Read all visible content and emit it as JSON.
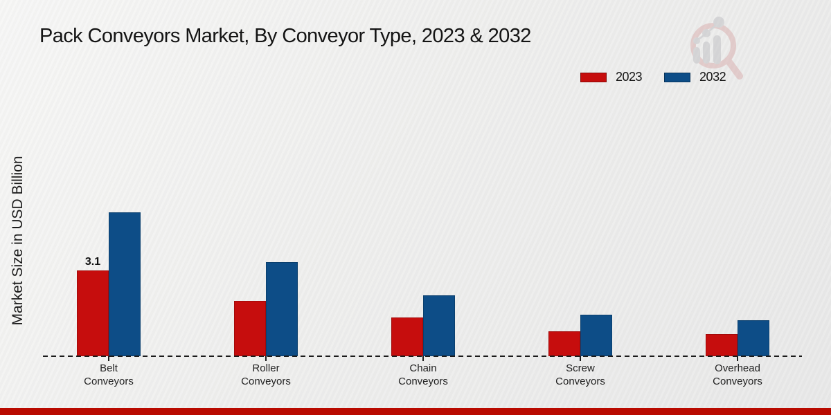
{
  "title": "Pack Conveyors Market, By Conveyor Type, 2023 & 2032",
  "footer_bar_color": "#b90a00",
  "watermark_icon": "magnifier-bar-chart-logo",
  "chart_data": {
    "type": "bar",
    "title": "Pack Conveyors Market, By Conveyor Type, 2023 & 2032",
    "xlabel": "",
    "ylabel": "Market Size in USD Billion",
    "categories": [
      "Belt Conveyors",
      "Roller Conveyors",
      "Chain Conveyors",
      "Screw Conveyors",
      "Overhead Conveyors"
    ],
    "series": [
      {
        "name": "2023",
        "color": "#c60d0d",
        "values": [
          3.1,
          2.0,
          1.4,
          0.9,
          0.8
        ]
      },
      {
        "name": "2032",
        "color": "#0d4d87",
        "values": [
          5.2,
          3.4,
          2.2,
          1.5,
          1.3
        ]
      }
    ],
    "data_labels": [
      {
        "series_index": 0,
        "category_index": 0,
        "text": "3.1"
      }
    ],
    "ylim": [
      0,
      5.5
    ],
    "grid": false,
    "y_ticks_visible": false,
    "baseline_style": "dashed",
    "legend_position": "top-right"
  }
}
